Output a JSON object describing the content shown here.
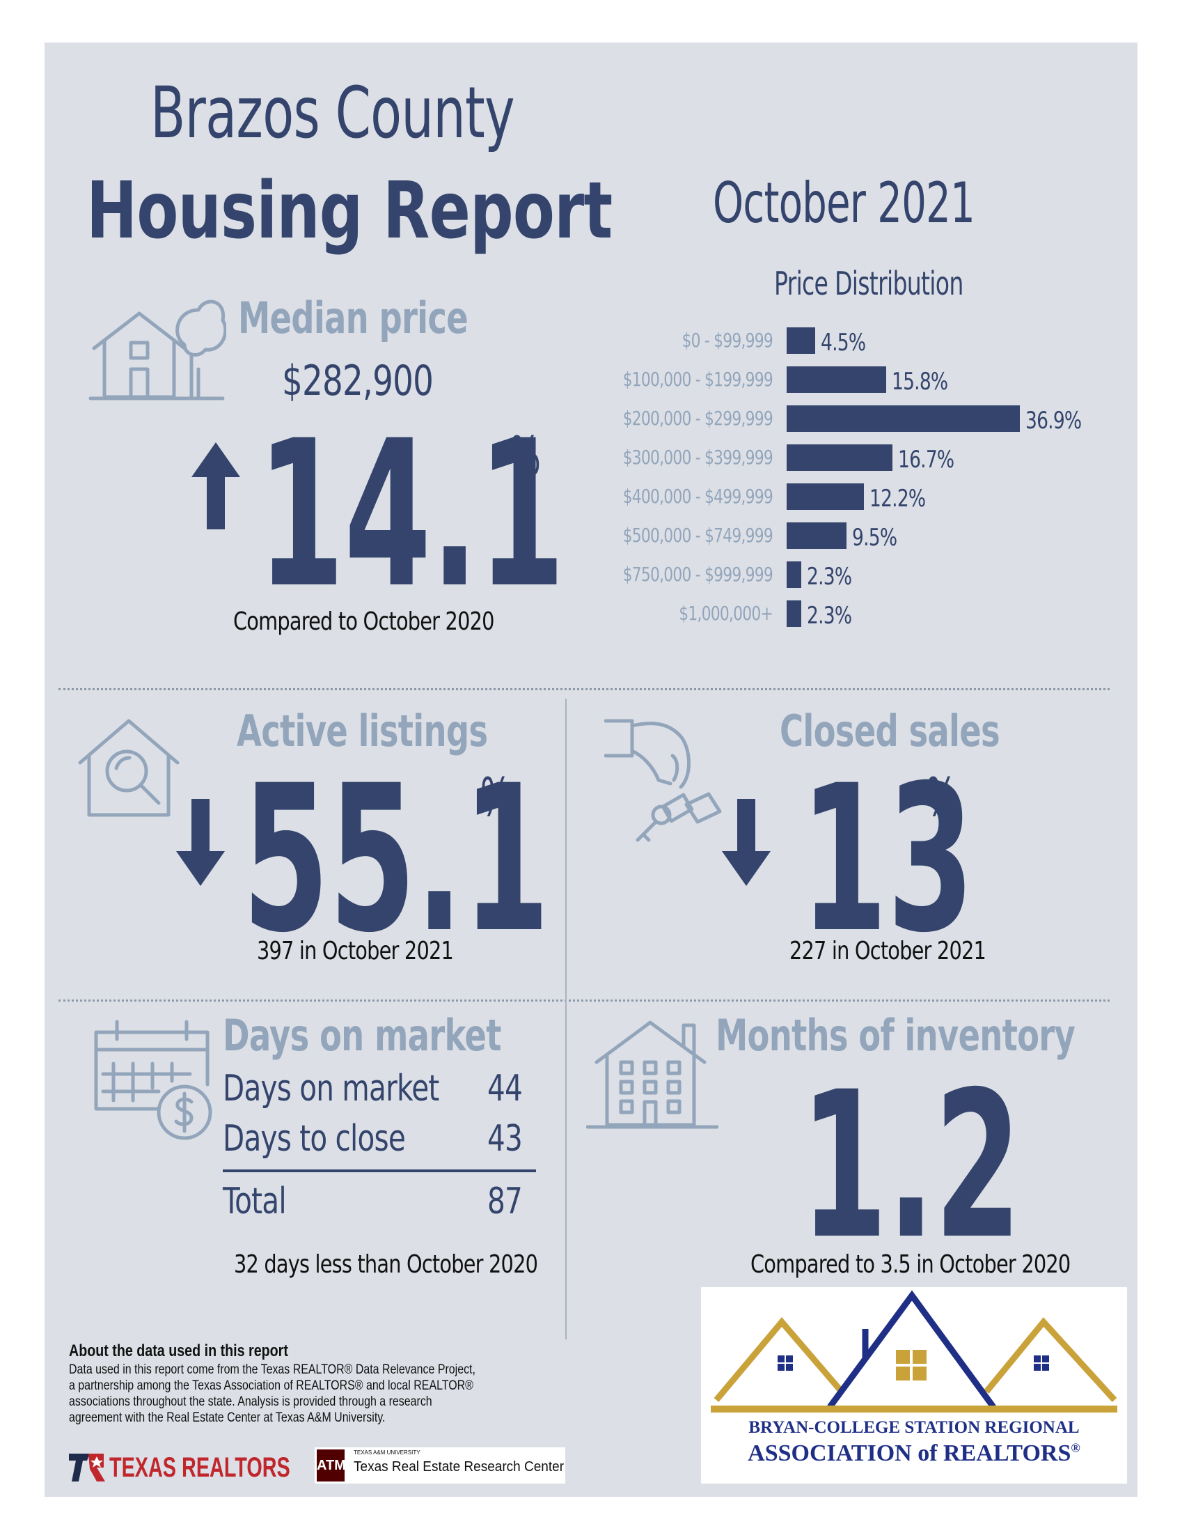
{
  "header": {
    "title_line1": "Brazos County",
    "title_line2": "Housing Report",
    "month": "October 2021"
  },
  "median_price": {
    "title": "Median price",
    "value": "$282,900",
    "change": "14.1",
    "unit": "%",
    "direction": "up",
    "caption": "Compared to October 2020",
    "icon": "house-tree-icon"
  },
  "price_distribution": {
    "title": "Price Distribution",
    "chart_data": {
      "type": "bar",
      "orientation": "horizontal",
      "title": "Price Distribution",
      "categories": [
        "$0 - $99,999",
        "$100,000 - $199,999",
        "$200,000 - $299,999",
        "$300,000 - $399,999",
        "$400,000 - $499,999",
        "$500,000 - $749,999",
        "$750,000 - $999,999",
        "$1,000,000+"
      ],
      "values": [
        4.5,
        15.8,
        36.9,
        16.7,
        12.2,
        9.5,
        2.3,
        2.3
      ],
      "value_labels": [
        "4.5%",
        "15.8%",
        "36.9%",
        "16.7%",
        "12.2%",
        "9.5%",
        "2.3%",
        "2.3%"
      ],
      "color": "#34446c"
    }
  },
  "active_listings": {
    "title": "Active listings",
    "change": "55.1",
    "unit": "%",
    "direction": "down",
    "caption": "397 in October 2021",
    "icon": "house-magnifier-icon"
  },
  "closed_sales": {
    "title": "Closed sales",
    "change": "13",
    "unit": "%",
    "direction": "down",
    "caption": "227 in October 2021",
    "icon": "hand-keys-icon"
  },
  "days_on_market": {
    "title": "Days on market",
    "rows": [
      {
        "label": "Days on market",
        "value": "44"
      },
      {
        "label": "Days to close",
        "value": "43"
      }
    ],
    "total_label": "Total",
    "total_value": "87",
    "caption": "32 days less than October 2020",
    "icon": "calendar-dollar-icon"
  },
  "months_inventory": {
    "title": "Months of inventory",
    "value": "1.2",
    "caption": "Compared to 3.5 in October 2020",
    "icon": "apartment-house-icon"
  },
  "about": {
    "heading": "About the data used in this report",
    "body": "Data used in this report come from the Texas REALTOR® Data Relevance Project, a partnership among the Texas Association of REALTORS® and local REALTOR® associations throughout the state. Analysis is provided through a research agreement with the Real Estate Center at Texas A&M University."
  },
  "logos": {
    "texas_realtors": "TEXAS REALTORS",
    "tamu_small": "TEXAS A&M UNIVERSITY",
    "tamu_center": "Texas Real Estate Research Center",
    "bcs_line1": "BRYAN-COLLEGE STATION REGIONAL",
    "bcs_line2": "ASSOCIATION of REALTORS",
    "bcs_reg": "®"
  },
  "colors": {
    "navy": "#34446c",
    "grey_blue": "#93a5bb",
    "panel": "#dce0e6",
    "gold": "#c9a23a"
  }
}
